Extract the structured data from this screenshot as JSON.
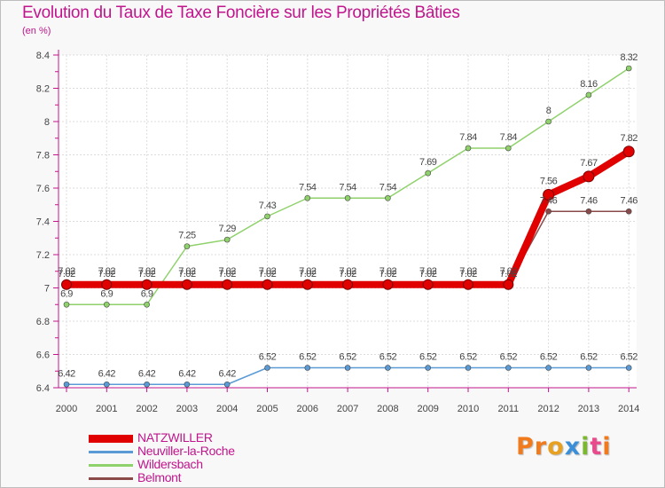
{
  "brand": {
    "text": "Proxiti",
    "colors": [
      "#f07a1c",
      "#f07a1c",
      "#e8a020",
      "#3a8fd8",
      "#7ab830",
      "#e84a8c",
      "#f07a1c"
    ]
  },
  "chart_data": {
    "type": "line",
    "title": "Evolution du Taux de Taxe Foncière sur les Propriétés Bâties",
    "ylabel": "(en %)",
    "xlabel": "",
    "ylim": [
      6.4,
      8.4
    ],
    "yticks": [
      "6.4",
      "6.6",
      "6.8",
      "7",
      "7.2",
      "7.4",
      "7.6",
      "7.8",
      "8",
      "8.2",
      "8.4"
    ],
    "categories": [
      "2000",
      "2001",
      "2002",
      "2003",
      "2004",
      "2005",
      "2006",
      "2007",
      "2008",
      "2009",
      "2010",
      "2011",
      "2012",
      "2013",
      "2014"
    ],
    "series": [
      {
        "name": "NATZWILLER",
        "color": "#e00000",
        "emphasis": true,
        "values": [
          7.02,
          7.02,
          7.02,
          7.02,
          7.02,
          7.02,
          7.02,
          7.02,
          7.02,
          7.02,
          7.02,
          7.02,
          7.56,
          7.67,
          7.82
        ],
        "labels": [
          "7.02",
          "7.02",
          "7.02",
          "7.02",
          "7.02",
          "7.02",
          "7.02",
          "7.02",
          "7.02",
          "7.02",
          "7.02",
          "7.02",
          "7.56",
          "7.67",
          "7.82"
        ]
      },
      {
        "name": "Neuviller-la-Roche",
        "color": "#5b9bd5",
        "values": [
          6.42,
          6.42,
          6.42,
          6.42,
          6.42,
          6.52,
          6.52,
          6.52,
          6.52,
          6.52,
          6.52,
          6.52,
          6.52,
          6.52,
          6.52
        ],
        "labels": [
          "6.42",
          "6.42",
          "6.42",
          "6.42",
          "6.42",
          "6.52",
          "6.52",
          "6.52",
          "6.52",
          "6.52",
          "6.52",
          "6.52",
          "6.52",
          "6.52",
          "6.52"
        ]
      },
      {
        "name": "Wildersbach",
        "color": "#8fd16b",
        "values": [
          6.9,
          6.9,
          6.9,
          7.25,
          7.29,
          7.43,
          7.54,
          7.54,
          7.54,
          7.69,
          7.84,
          7.84,
          8,
          8.16,
          8.32
        ],
        "labels": [
          "6.9",
          "6.9",
          "6.9",
          "7.25",
          "7.29",
          "7.43",
          "7.54",
          "7.54",
          "7.54",
          "7.69",
          "7.84",
          "7.84",
          "8",
          "8.16",
          "8.32"
        ]
      },
      {
        "name": "Belmont",
        "color": "#8a4a4a",
        "values": [
          7.02,
          7.02,
          7.02,
          7.02,
          7.02,
          7.02,
          7.02,
          7.02,
          7.02,
          7.02,
          7.02,
          7.02,
          7.46,
          7.46,
          7.46
        ],
        "labels": [
          "7.02",
          "7.02",
          "7.02",
          "7.02",
          "7.02",
          "7.02",
          "7.02",
          "7.02",
          "7.02",
          "7.02",
          "7.02",
          "7.02",
          "7.46",
          "7.46",
          "7.46"
        ]
      }
    ]
  }
}
